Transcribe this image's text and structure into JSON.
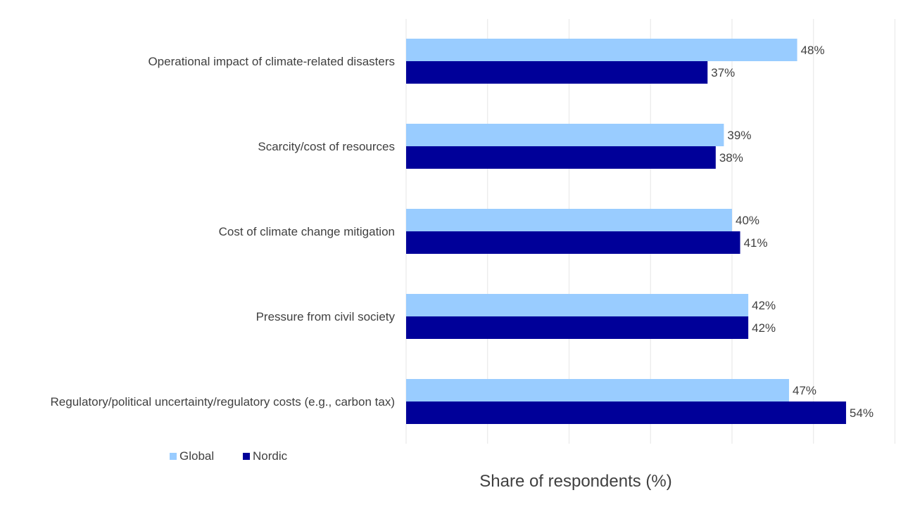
{
  "chart_data": {
    "type": "bar",
    "orientation": "horizontal",
    "categories": [
      "Operational impact of climate-related disasters",
      "Scarcity/cost of resources",
      "Cost of climate change mitigation",
      "Pressure from civil society",
      "Regulatory/political uncertainty/regulatory costs (e.g., carbon tax)"
    ],
    "series": [
      {
        "name": "Global",
        "color": "#99ccff",
        "values": [
          48,
          39,
          40,
          42,
          47
        ]
      },
      {
        "name": "Nordic",
        "color": "#000099",
        "values": [
          37,
          38,
          41,
          42,
          54
        ]
      }
    ],
    "value_suffix": "%",
    "title": "",
    "xlabel": "Share of respondents (%)",
    "ylabel": "",
    "xlim": [
      0,
      60
    ],
    "gridlines": true,
    "tick_labels_shown": false,
    "legend_position": "bottom-left"
  }
}
